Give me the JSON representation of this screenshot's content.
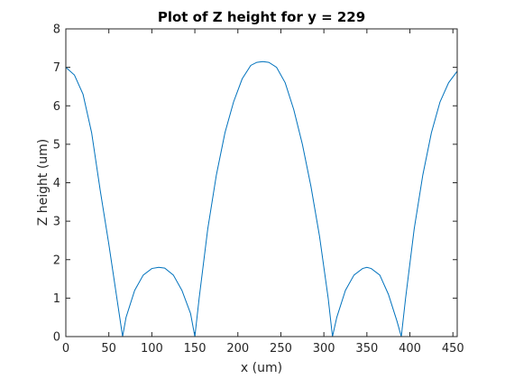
{
  "chart_data": {
    "type": "line",
    "title": "Plot of Z height for y = 229",
    "xlabel": "x (um)",
    "ylabel": "Z height (um)",
    "xlim": [
      0,
      455
    ],
    "ylim": [
      0,
      8
    ],
    "xticks": [
      0,
      50,
      100,
      150,
      200,
      250,
      300,
      350,
      400,
      450
    ],
    "yticks": [
      0,
      1,
      2,
      3,
      4,
      5,
      6,
      7,
      8
    ],
    "grid": false,
    "legend": "none",
    "series_color": "#0072BD",
    "series": [
      {
        "x": [
          0,
          10,
          20,
          30,
          40,
          50,
          60,
          66,
          70,
          80,
          90,
          100,
          108,
          115,
          125,
          135,
          145,
          150,
          155,
          165,
          175,
          185,
          195,
          205,
          215,
          222,
          229,
          236,
          245,
          255,
          265,
          275,
          285,
          295,
          305,
          310,
          315,
          325,
          335,
          345,
          350,
          355,
          365,
          375,
          385,
          390,
          395,
          405,
          415,
          425,
          435,
          445,
          455
        ],
        "y": [
          7.0,
          6.8,
          6.3,
          5.3,
          3.8,
          2.4,
          0.9,
          0.0,
          0.5,
          1.2,
          1.6,
          1.77,
          1.8,
          1.78,
          1.6,
          1.2,
          0.6,
          0.0,
          1.0,
          2.8,
          4.2,
          5.3,
          6.1,
          6.7,
          7.05,
          7.13,
          7.15,
          7.13,
          7.0,
          6.6,
          5.9,
          5.0,
          3.9,
          2.6,
          1.0,
          0.0,
          0.5,
          1.2,
          1.6,
          1.77,
          1.8,
          1.77,
          1.6,
          1.1,
          0.4,
          0.0,
          1.0,
          2.8,
          4.2,
          5.3,
          6.1,
          6.6,
          6.9
        ]
      }
    ]
  }
}
